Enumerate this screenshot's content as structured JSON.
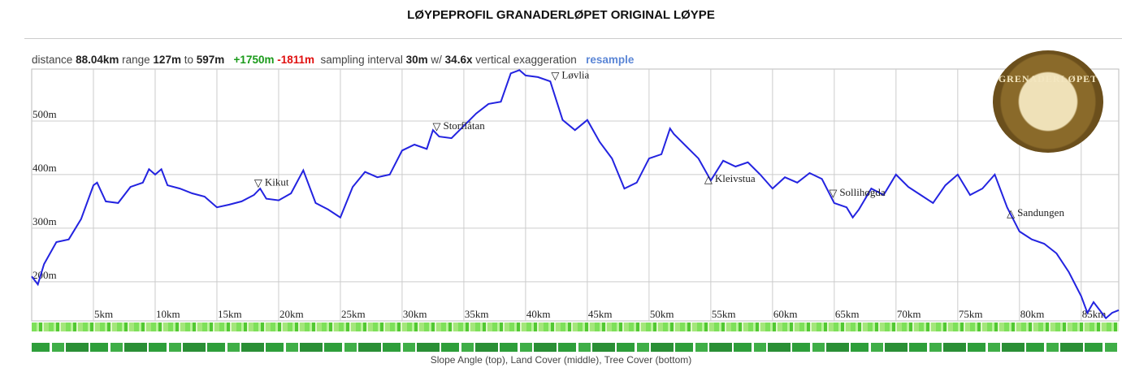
{
  "chart_data": {
    "type": "line",
    "title": "LØYPEPROFIL GRANADERLØPET ORIGINAL LØYPE",
    "stats": {
      "distance_label": "distance",
      "distance": "88.04km",
      "range_label": "range",
      "range_min": "127m",
      "range_to": "to",
      "range_max": "597m",
      "gain": "+1750m",
      "loss": "-1811m",
      "sampling_label": "sampling interval",
      "sampling": "30m",
      "with_label": "w/",
      "exaggeration": "34.6x",
      "exaggeration_label": "vertical exaggeration",
      "resample": "resample"
    },
    "logo_text": "GRENADERLØPET",
    "caption": "Slope Angle (top), Land Cover (middle), Tree Cover (bottom)",
    "xlim": [
      0,
      88.04
    ],
    "ylim": [
      127,
      597
    ],
    "xticks": [
      {
        "value": 5,
        "label": "5km"
      },
      {
        "value": 10,
        "label": "10km"
      },
      {
        "value": 15,
        "label": "15km"
      },
      {
        "value": 20,
        "label": "20km"
      },
      {
        "value": 25,
        "label": "25km"
      },
      {
        "value": 30,
        "label": "30km"
      },
      {
        "value": 35,
        "label": "35km"
      },
      {
        "value": 40,
        "label": "40km"
      },
      {
        "value": 45,
        "label": "45km"
      },
      {
        "value": 50,
        "label": "50km"
      },
      {
        "value": 55,
        "label": "55km"
      },
      {
        "value": 60,
        "label": "60km"
      },
      {
        "value": 65,
        "label": "65km"
      },
      {
        "value": 70,
        "label": "70km"
      },
      {
        "value": 75,
        "label": "75km"
      },
      {
        "value": 80,
        "label": "80km"
      },
      {
        "value": 85,
        "label": "85km"
      }
    ],
    "yticks": [
      {
        "value": 200,
        "label": "200m"
      },
      {
        "value": 300,
        "label": "300m"
      },
      {
        "value": 400,
        "label": "400m"
      },
      {
        "value": 500,
        "label": "500m"
      }
    ],
    "grid": true,
    "x": [
      0,
      0.5,
      1,
      2,
      3,
      4,
      5,
      5.3,
      6,
      7,
      8,
      9,
      9.5,
      10,
      10.5,
      11,
      12,
      13,
      14,
      15,
      16,
      17,
      18,
      18.5,
      19,
      20,
      21,
      22,
      23,
      24,
      25,
      26,
      27,
      28,
      29,
      30,
      31,
      32,
      32.5,
      33,
      34,
      35,
      36,
      37,
      38,
      38.8,
      39.5,
      40,
      41,
      42,
      43,
      44,
      45,
      46,
      47,
      48,
      49,
      50,
      51,
      51.7,
      52,
      53,
      54,
      55,
      56,
      57,
      58,
      59,
      60,
      61,
      62,
      63,
      64,
      65,
      66,
      66.5,
      67,
      68,
      69,
      70,
      71,
      72,
      73,
      74,
      75,
      76,
      77,
      78,
      79,
      80,
      81,
      82,
      83,
      84,
      85,
      85.5,
      86,
      87,
      87.5,
      88.04
    ],
    "series": [
      {
        "name": "elevation",
        "color": "#2323e0",
        "values": [
          210,
          195,
          233,
          274,
          279,
          317,
          380,
          385,
          350,
          347,
          377,
          385,
          410,
          400,
          410,
          380,
          374,
          365,
          359,
          339,
          344,
          350,
          362,
          374,
          355,
          352,
          365,
          408,
          347,
          335,
          320,
          377,
          405,
          395,
          400,
          445,
          456,
          448,
          483,
          471,
          468,
          491,
          514,
          532,
          536,
          589,
          595,
          585,
          582,
          574,
          502,
          483,
          502,
          461,
          430,
          374,
          385,
          430,
          438,
          486,
          476,
          453,
          430,
          389,
          426,
          415,
          423,
          400,
          374,
          395,
          385,
          403,
          392,
          347,
          339,
          320,
          335,
          374,
          362,
          400,
          377,
          362,
          347,
          380,
          400,
          362,
          374,
          400,
          339,
          294,
          279,
          271,
          253,
          218,
          173,
          142,
          162,
          132,
          142,
          147
        ]
      }
    ],
    "annotations": [
      {
        "text": "Kikut",
        "x": 18.35,
        "y": 378,
        "symbol": "▽"
      },
      {
        "text": "Storflåtan",
        "x": 32.8,
        "y": 483,
        "symbol": "▽"
      },
      {
        "text": "Løvlia",
        "x": 42.4,
        "y": 578,
        "symbol": "▽"
      },
      {
        "text": "Kleivstua",
        "x": 54.8,
        "y": 385,
        "symbol": "△"
      },
      {
        "text": "Sollihøgda",
        "x": 64.9,
        "y": 359,
        "symbol": "▽"
      },
      {
        "text": "Sandungen",
        "x": 79.3,
        "y": 321,
        "symbol": "△"
      }
    ]
  }
}
